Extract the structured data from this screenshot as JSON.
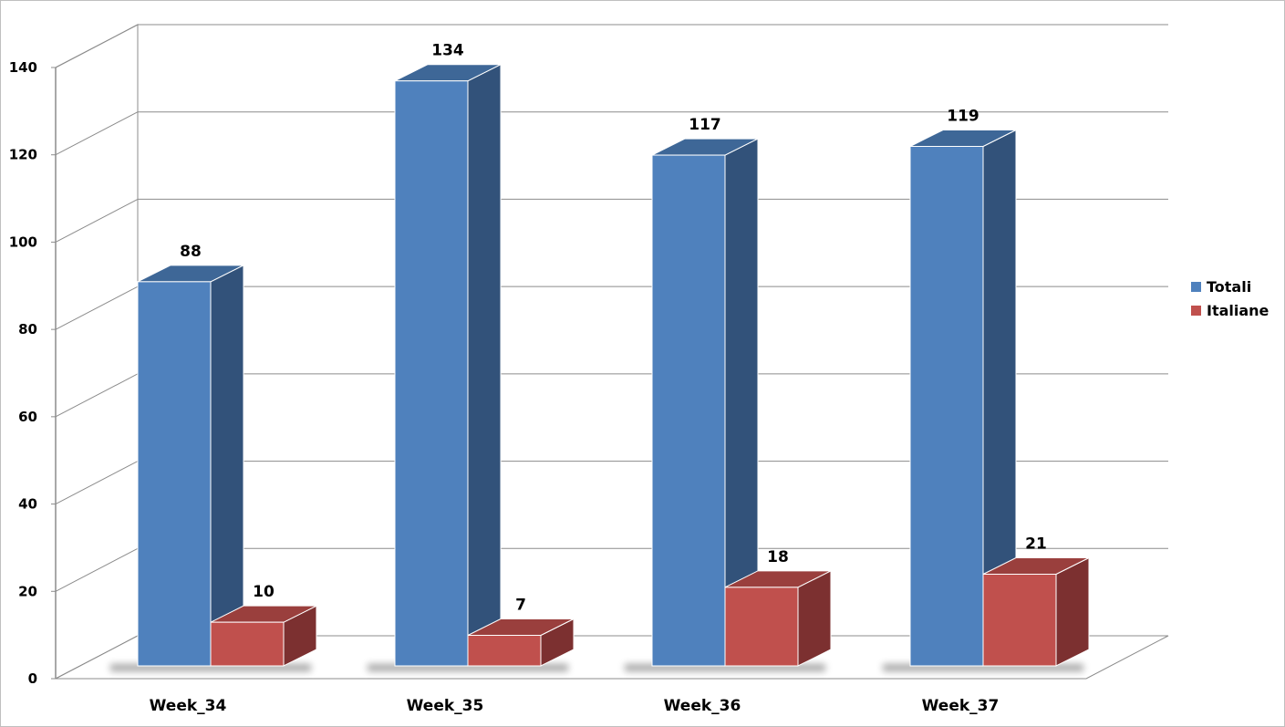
{
  "chart_data": {
    "type": "bar",
    "style": "3d-clustered-column",
    "categories": [
      "Week_34",
      "Week_35",
      "Week_36",
      "Week_37"
    ],
    "series": [
      {
        "name": "Totali",
        "values": [
          88,
          134,
          117,
          119
        ],
        "color": "#4f81bd",
        "side_color": "#32527a",
        "top_color": "#3e6797"
      },
      {
        "name": "Italiane",
        "values": [
          10,
          7,
          18,
          21
        ],
        "color": "#c0504d",
        "side_color": "#7c3030",
        "top_color": "#9a3f3d"
      }
    ],
    "data_labels": true,
    "ylim": [
      0,
      140
    ],
    "y_ticks": [
      0,
      20,
      40,
      60,
      80,
      100,
      120,
      140
    ],
    "grid": true,
    "legend": "right"
  }
}
